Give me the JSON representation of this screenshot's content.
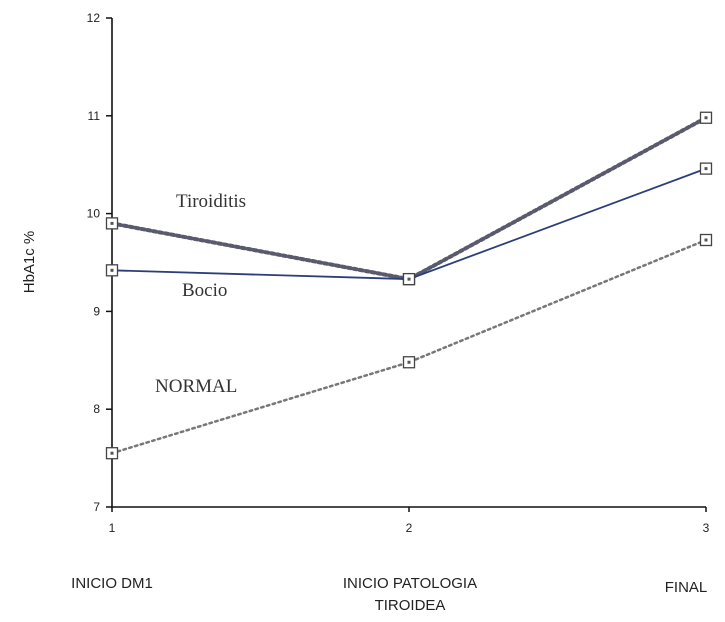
{
  "chart_data": {
    "type": "line",
    "ylabel": "HbA1c %",
    "xlabel": "",
    "title": "",
    "x": [
      1,
      2,
      3
    ],
    "xlim": [
      1,
      3
    ],
    "ylim": [
      7,
      12
    ],
    "x_ticks": [
      "1",
      "2",
      "3"
    ],
    "y_ticks": [
      "7",
      "8",
      "9",
      "10",
      "11",
      "12"
    ],
    "categories": [
      [
        "INICIO DM1"
      ],
      [
        "INICIO PATOLOGIA",
        "TIROIDEA"
      ],
      [
        "FINAL"
      ]
    ],
    "grid": false,
    "series": [
      {
        "name": "Tiroiditis",
        "values": [
          9.9,
          9.33,
          10.98
        ],
        "color": "#5a5a6e",
        "style": "dotted-bold"
      },
      {
        "name": "Bocio",
        "values": [
          9.42,
          9.33,
          10.46
        ],
        "color": "#2c3e7a",
        "style": "solid"
      },
      {
        "name": "NORMAL",
        "values": [
          7.55,
          8.48,
          9.73
        ],
        "color": "#777777",
        "style": "dotted"
      }
    ]
  }
}
